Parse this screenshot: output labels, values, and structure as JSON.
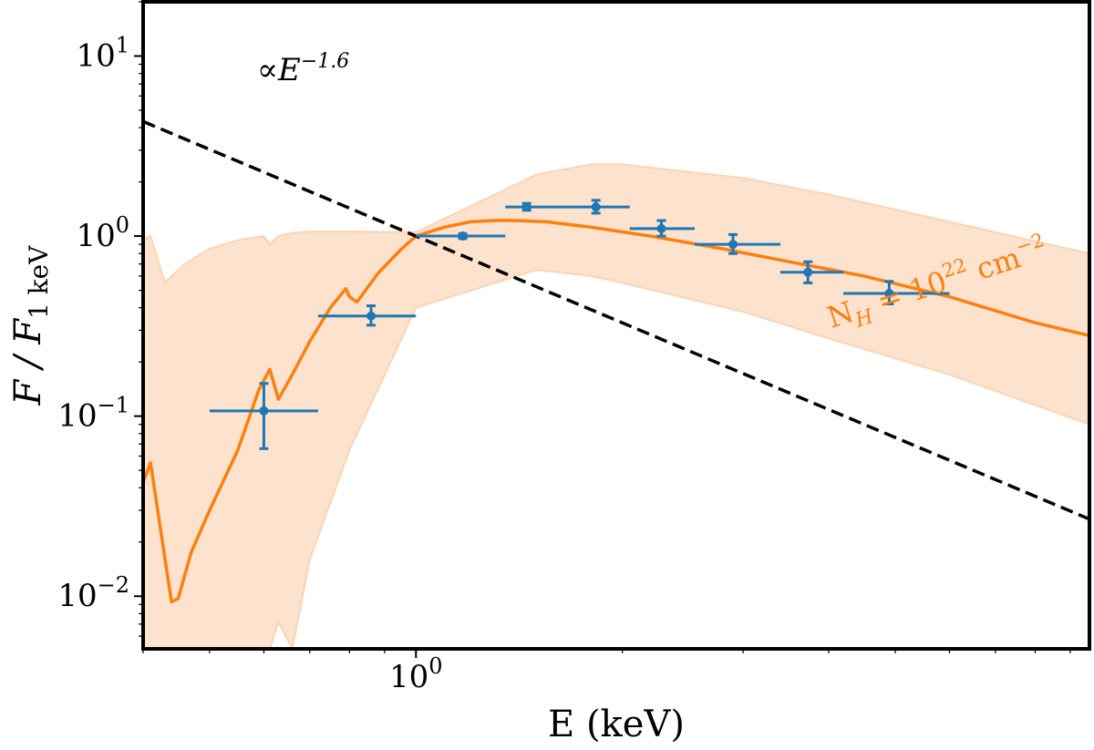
{
  "chart_data": {
    "type": "scatter",
    "title": "",
    "xlabel": "E (keV)",
    "ylabel": "F / F",
    "ylabel_subscript": "1 keV",
    "xscale": "log",
    "yscale": "log",
    "xlim": [
      0.4,
      9.6
    ],
    "ylim": [
      0.0051,
      20.0
    ],
    "grid": false,
    "x_ticks": [
      {
        "value": 1,
        "base": "10",
        "exp": "0"
      }
    ],
    "y_ticks": [
      {
        "value": 0.01,
        "base": "10",
        "exp": "−2"
      },
      {
        "value": 0.1,
        "base": "10",
        "exp": "−1"
      },
      {
        "value": 1,
        "base": "10",
        "exp": "0"
      },
      {
        "value": 10,
        "base": "10",
        "exp": "1"
      }
    ],
    "colors": {
      "data": "#1f77b4",
      "model": "#ff7f0e",
      "band": "#fde3cd",
      "powerlaw": "#000000"
    },
    "powerlaw": {
      "index": -1.6,
      "norm_at_1keV": 1.0,
      "label_prefix": "∝",
      "label_var": "E",
      "label_exp": "−1.6"
    },
    "model_label": {
      "text": "N",
      "sub": "H",
      "eq": " = 10",
      "exp": "22",
      "unit": " cm",
      "unit_exp": "−2"
    },
    "series": [
      {
        "kind": "errorbar",
        "points": [
          {
            "x": 0.6,
            "y": 0.107,
            "xlo": 0.5,
            "xhi": 0.72,
            "ylo": 0.066,
            "yhi": 0.152
          },
          {
            "x": 0.86,
            "y": 0.36,
            "xlo": 0.72,
            "xhi": 1.0,
            "ylo": 0.32,
            "yhi": 0.41
          },
          {
            "x": 1.17,
            "y": 1.0,
            "xlo": 1.0,
            "xhi": 1.35,
            "ylo": 0.97,
            "yhi": 1.03
          },
          {
            "x": 1.45,
            "y": 1.45,
            "xlo": 1.35,
            "xhi": 1.65,
            "ylo": 1.39,
            "yhi": 1.52
          },
          {
            "x": 1.83,
            "y": 1.45,
            "xlo": 1.65,
            "xhi": 2.05,
            "ylo": 1.34,
            "yhi": 1.58
          },
          {
            "x": 2.28,
            "y": 1.1,
            "xlo": 2.05,
            "xhi": 2.55,
            "ylo": 1.0,
            "yhi": 1.22
          },
          {
            "x": 2.9,
            "y": 0.9,
            "xlo": 2.55,
            "xhi": 3.4,
            "ylo": 0.8,
            "yhi": 1.02
          },
          {
            "x": 3.73,
            "y": 0.63,
            "xlo": 3.4,
            "xhi": 4.2,
            "ylo": 0.55,
            "yhi": 0.72
          },
          {
            "x": 4.9,
            "y": 0.48,
            "xlo": 4.2,
            "xhi": 6.0,
            "ylo": 0.42,
            "yhi": 0.56
          }
        ]
      },
      {
        "kind": "line",
        "x": [
          0.4,
          0.41,
          0.44,
          0.45,
          0.47,
          0.5,
          0.55,
          0.59,
          0.612,
          0.62,
          0.63,
          0.66,
          0.7,
          0.75,
          0.79,
          0.8,
          0.82,
          0.88,
          0.95,
          1.0,
          1.1,
          1.2,
          1.3,
          1.4,
          1.55,
          1.8,
          2.2,
          2.8,
          3.5,
          4.5,
          6.0,
          8.0,
          9.6
        ],
        "y": [
          0.043,
          0.055,
          0.0093,
          0.0097,
          0.0175,
          0.03,
          0.065,
          0.14,
          0.182,
          0.154,
          0.124,
          0.17,
          0.26,
          0.4,
          0.51,
          0.46,
          0.43,
          0.62,
          0.84,
          1.0,
          1.12,
          1.2,
          1.22,
          1.22,
          1.2,
          1.12,
          1.0,
          0.85,
          0.72,
          0.6,
          0.46,
          0.33,
          0.28
        ]
      },
      {
        "kind": "band",
        "x": [
          0.4,
          0.41,
          0.42,
          0.43,
          0.46,
          0.5,
          0.55,
          0.6,
          0.612,
          0.63,
          0.66,
          0.7,
          0.8,
          1.0,
          1.5,
          1.8,
          2.0,
          3.0,
          4.0,
          6.0,
          9.6
        ],
        "upper": [
          0.95,
          1.0,
          0.75,
          0.55,
          0.7,
          0.85,
          0.95,
          1.0,
          0.9,
          1.0,
          1.04,
          1.06,
          1.06,
          1.05,
          2.2,
          2.5,
          2.5,
          2.1,
          1.7,
          1.2,
          0.8
        ],
        "lower": [
          0.0051,
          0.0051,
          0.0051,
          0.0051,
          0.0051,
          0.0051,
          0.0051,
          0.0051,
          0.0051,
          0.0072,
          0.0051,
          0.016,
          0.065,
          0.4,
          0.65,
          0.6,
          0.55,
          0.38,
          0.27,
          0.17,
          0.09
        ]
      }
    ]
  }
}
